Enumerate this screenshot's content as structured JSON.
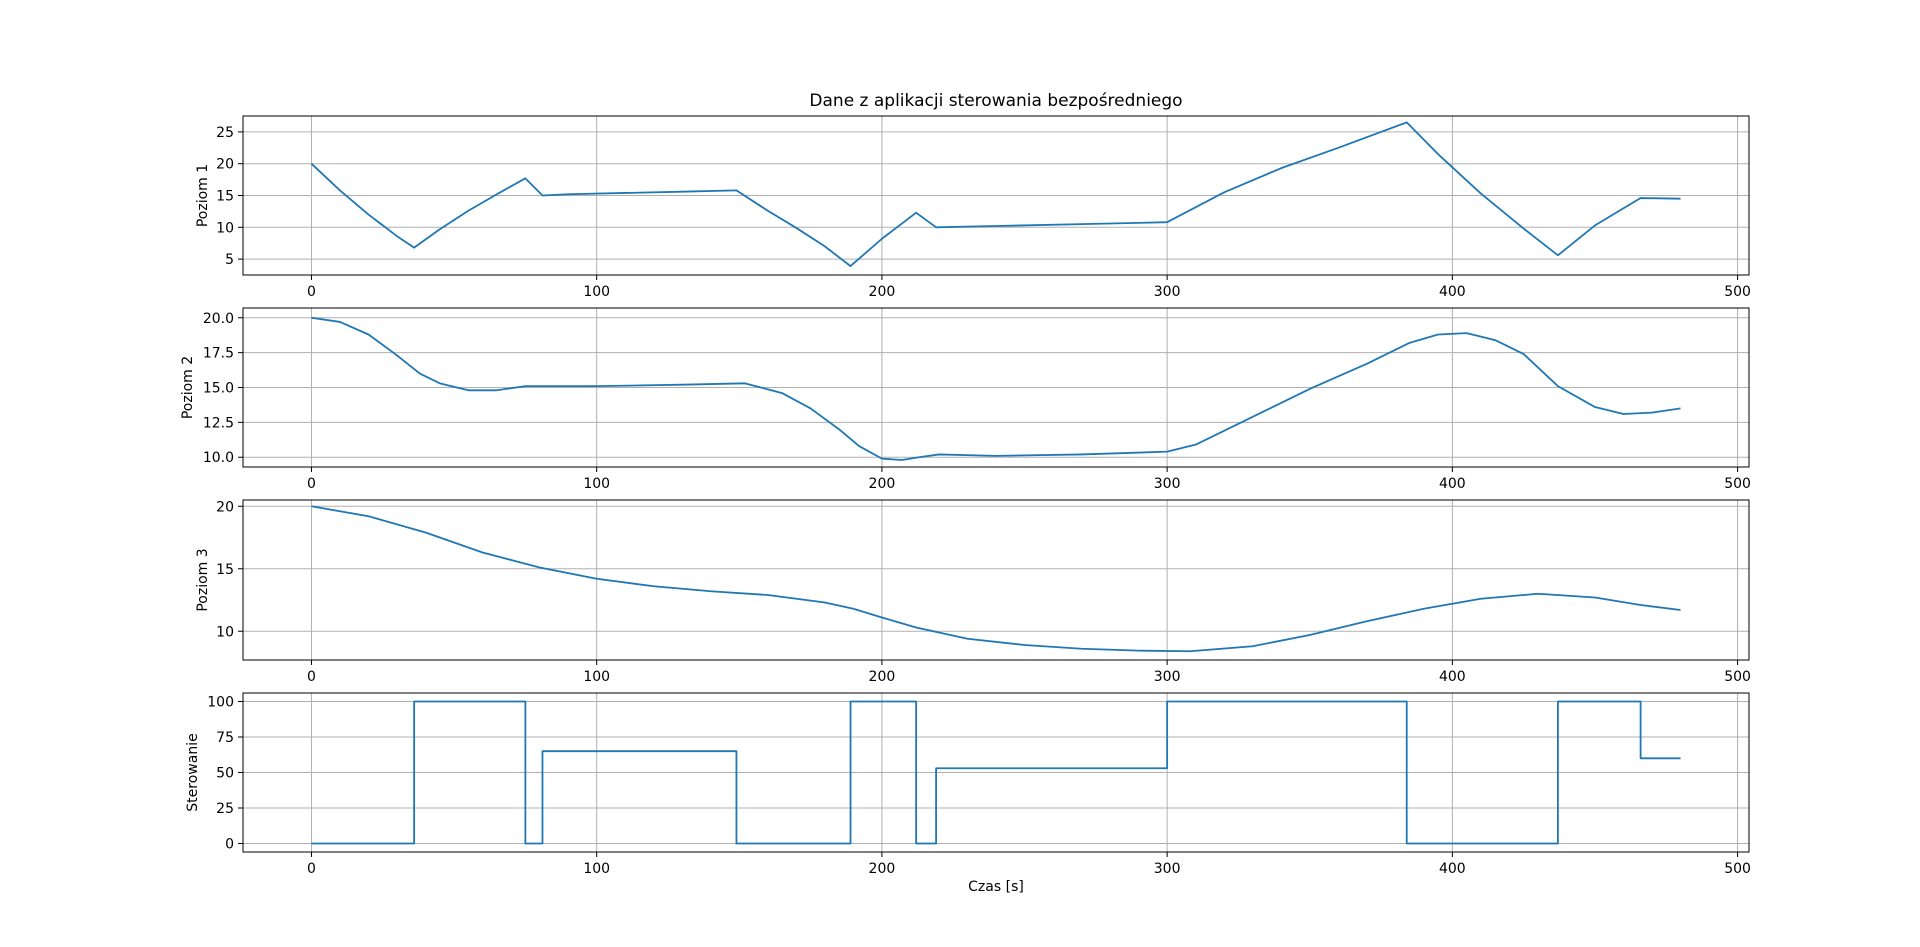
{
  "title": "Dane z aplikacji sterowania bezpośredniego",
  "colors": {
    "series": "#1f77b4",
    "grid": "#b0b0b0",
    "axis": "#000000"
  },
  "chart_data": [
    {
      "type": "line",
      "ylabel": "Poziom 1",
      "xlabel": "",
      "xlim": [
        -24,
        504
      ],
      "ylim": [
        2.5,
        27.5
      ],
      "xticks": [
        0,
        100,
        200,
        300,
        400,
        500
      ],
      "yticks": [
        5,
        10,
        15,
        20,
        25
      ],
      "ytick_labels": [
        "5",
        "10",
        "15",
        "20",
        "25"
      ],
      "grid": true,
      "x": [
        0,
        10,
        20,
        30,
        36,
        45,
        55,
        65,
        75,
        81,
        90,
        110,
        130,
        149,
        160,
        170,
        180,
        189,
        200,
        212,
        219,
        240,
        270,
        300,
        320,
        340,
        360,
        384,
        395,
        410,
        425,
        437,
        450,
        466,
        480
      ],
      "y": [
        20,
        15.8,
        12.0,
        8.6,
        6.8,
        9.7,
        12.6,
        15.2,
        17.7,
        15.0,
        15.2,
        15.4,
        15.6,
        15.8,
        12.6,
        9.9,
        7.0,
        3.9,
        8.2,
        12.3,
        10.0,
        10.2,
        10.5,
        10.8,
        15.5,
        19.3,
        22.5,
        26.5,
        21.5,
        15.3,
        9.8,
        5.6,
        10.3,
        14.6,
        14.5
      ]
    },
    {
      "type": "line",
      "ylabel": "Poziom 2",
      "xlabel": "",
      "xlim": [
        -24,
        504
      ],
      "ylim": [
        9.3,
        20.7
      ],
      "xticks": [
        0,
        100,
        200,
        300,
        400,
        500
      ],
      "yticks": [
        10.0,
        12.5,
        15.0,
        17.5,
        20.0
      ],
      "ytick_labels": [
        "10.0",
        "12.5",
        "15.0",
        "17.5",
        "20.0"
      ],
      "grid": true,
      "x": [
        0,
        10,
        20,
        30,
        38,
        45,
        55,
        65,
        75,
        80,
        100,
        130,
        152,
        165,
        175,
        185,
        192,
        200,
        207,
        213,
        220,
        240,
        270,
        300,
        310,
        330,
        350,
        370,
        385,
        395,
        405,
        415,
        425,
        437,
        450,
        460,
        470,
        480
      ],
      "y": [
        20.0,
        19.7,
        18.8,
        17.3,
        16.0,
        15.3,
        14.8,
        14.8,
        15.1,
        15.1,
        15.1,
        15.2,
        15.3,
        14.6,
        13.5,
        12.0,
        10.8,
        9.9,
        9.8,
        10.0,
        10.2,
        10.1,
        10.2,
        10.4,
        10.9,
        12.9,
        14.9,
        16.7,
        18.2,
        18.8,
        18.9,
        18.4,
        17.4,
        15.1,
        13.6,
        13.1,
        13.2,
        13.5
      ]
    },
    {
      "type": "line",
      "ylabel": "Poziom 3",
      "xlabel": "",
      "xlim": [
        -24,
        504
      ],
      "ylim": [
        7.7,
        20.5
      ],
      "xticks": [
        0,
        100,
        200,
        300,
        400,
        500
      ],
      "yticks": [
        10,
        15,
        20
      ],
      "ytick_labels": [
        "10",
        "15",
        "20"
      ],
      "grid": true,
      "x": [
        0,
        20,
        40,
        60,
        80,
        100,
        120,
        140,
        160,
        180,
        190,
        200,
        212,
        230,
        250,
        270,
        290,
        308,
        330,
        350,
        370,
        390,
        410,
        430,
        450,
        466,
        480
      ],
      "y": [
        20.0,
        19.2,
        17.9,
        16.3,
        15.1,
        14.2,
        13.6,
        13.2,
        12.9,
        12.3,
        11.8,
        11.1,
        10.3,
        9.4,
        8.9,
        8.6,
        8.45,
        8.4,
        8.8,
        9.7,
        10.8,
        11.8,
        12.6,
        13.0,
        12.7,
        12.1,
        11.7
      ]
    },
    {
      "type": "line",
      "ylabel": "Sterowanie",
      "xlabel": "Czas [s]",
      "xlim": [
        -24,
        504
      ],
      "ylim": [
        -6,
        106
      ],
      "xticks": [
        0,
        100,
        200,
        300,
        400,
        500
      ],
      "yticks": [
        0,
        25,
        50,
        75,
        100
      ],
      "ytick_labels": [
        "0",
        "25",
        "50",
        "75",
        "100"
      ],
      "grid": true,
      "step": true,
      "x": [
        0,
        36,
        36,
        75,
        75,
        81,
        81,
        149,
        149,
        189,
        189,
        212,
        212,
        219,
        219,
        300,
        300,
        384,
        384,
        437,
        437,
        466,
        466,
        480
      ],
      "y": [
        0,
        0,
        100,
        100,
        0,
        0,
        65,
        65,
        0,
        0,
        100,
        100,
        0,
        0,
        53,
        53,
        100,
        100,
        0,
        0,
        100,
        100,
        60,
        60
      ]
    }
  ]
}
